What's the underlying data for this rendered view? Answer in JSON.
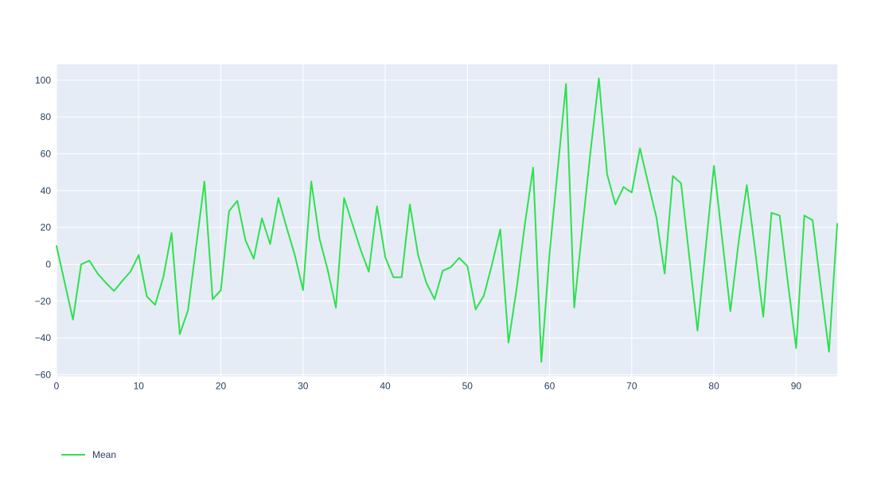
{
  "chart_data": {
    "type": "line",
    "title": "",
    "xlabel": "",
    "ylabel": "",
    "x": {
      "start": 0,
      "step": 1
    },
    "series": [
      {
        "name": "Mean",
        "color": "#2ee04e",
        "values": [
          10,
          -10,
          -30,
          0,
          2,
          -5,
          -10,
          -14.5,
          -9,
          -4,
          5,
          -17.5,
          -22,
          -7,
          17,
          -38,
          -25,
          10,
          45,
          -19,
          -14,
          29,
          34.5,
          13,
          3,
          25,
          11,
          36,
          20,
          5,
          -14,
          45,
          14,
          -3,
          -23.5,
          36,
          22,
          8,
          -4,
          31.5,
          4,
          -7,
          -7,
          32.5,
          5,
          -10,
          -19,
          -3.5,
          -1.5,
          3.5,
          -1,
          -24.5,
          -17,
          0,
          19,
          -42.5,
          -13,
          22,
          52.5,
          -53,
          6,
          52,
          98,
          -23.5,
          20,
          62,
          101,
          49,
          32.5,
          42,
          39,
          63,
          44,
          25.5,
          -5,
          48,
          44,
          4,
          -36,
          9,
          53.5,
          14,
          -25.5,
          12,
          43,
          8,
          -28.5,
          28,
          26.5,
          -10,
          -45.5,
          26.5,
          24,
          -12,
          -47.5,
          22
        ]
      }
    ],
    "xlim": [
      0,
      95
    ],
    "ylim": [
      -60.9,
      108.6
    ],
    "xticks": {
      "values": [
        0,
        10,
        20,
        30,
        40,
        50,
        60,
        70,
        80,
        90
      ],
      "labels": [
        "0",
        "10",
        "20",
        "30",
        "40",
        "50",
        "60",
        "70",
        "80",
        "90"
      ]
    },
    "yticks": {
      "values": [
        100,
        80,
        60,
        40,
        20,
        0,
        -20,
        -40,
        -60
      ],
      "labels": [
        "100",
        "80",
        "60",
        "40",
        "20",
        "0",
        "−20",
        "−40",
        "−60"
      ]
    },
    "grid": true,
    "legend_position": "bottom-left",
    "plot_bgcolor": "#e5ecf6",
    "paper_bgcolor": "#ffffff",
    "grid_color": "#ffffff",
    "tick_color": "#2a3f5f"
  },
  "legend": {
    "items": [
      {
        "label": "Mean",
        "color": "#2ee04e"
      }
    ]
  }
}
